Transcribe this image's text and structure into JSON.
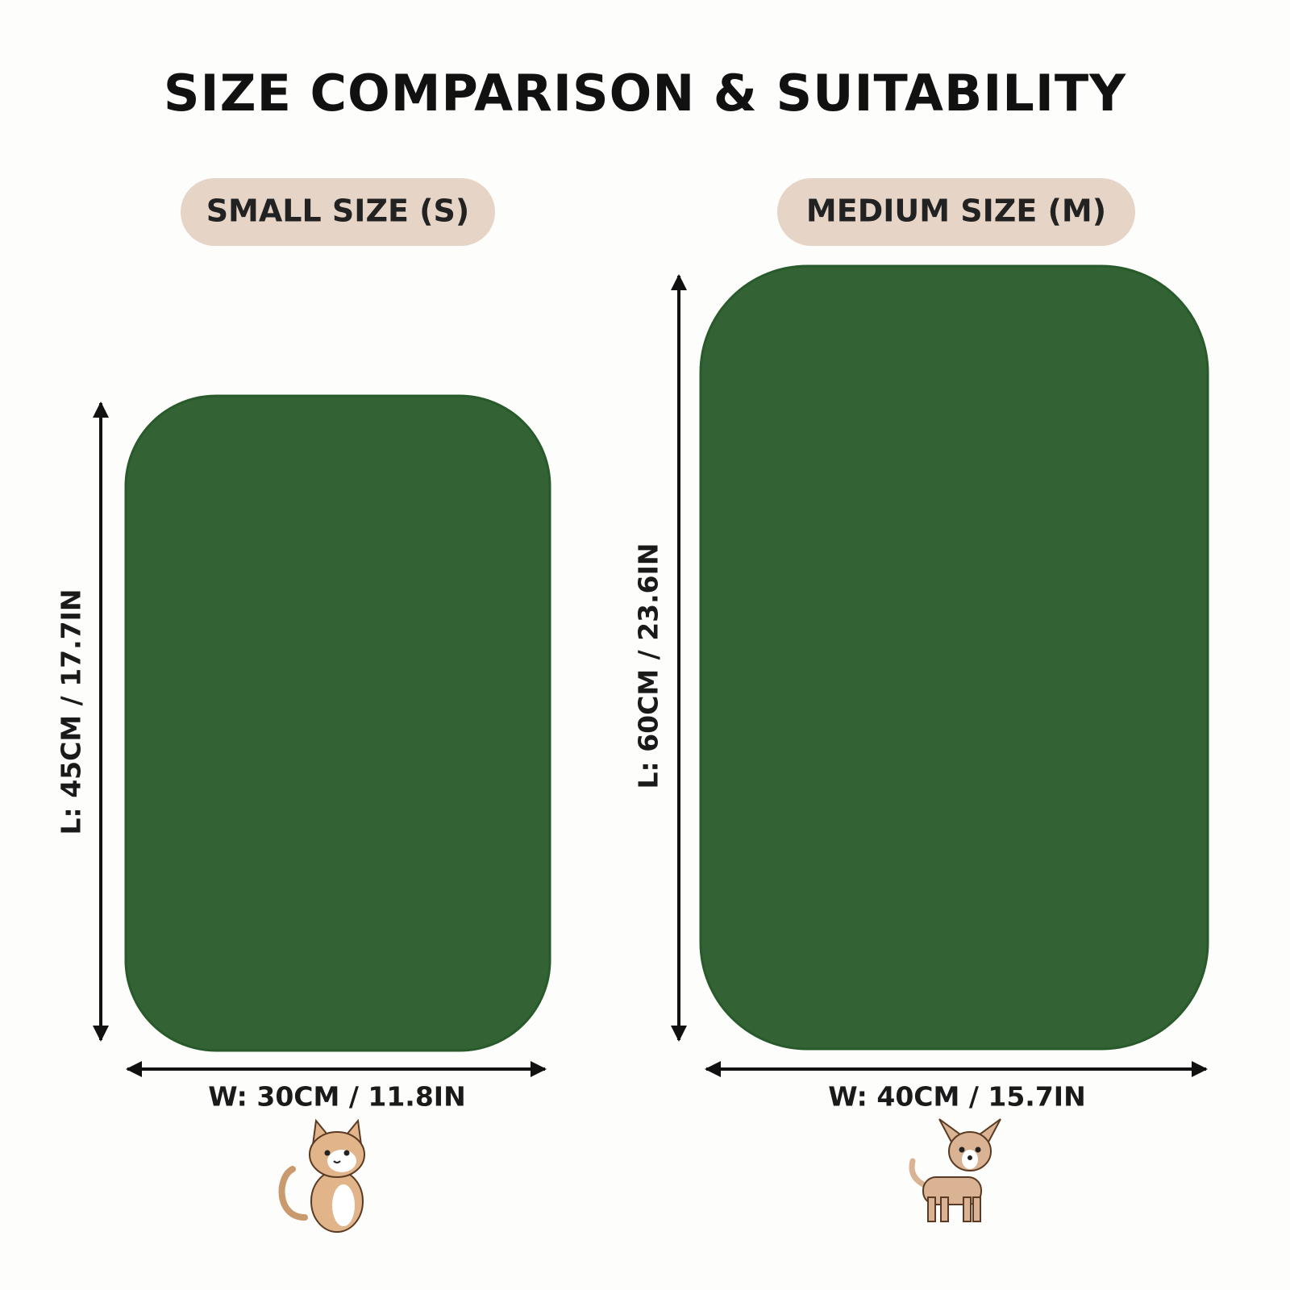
{
  "header": {
    "title": "SIZE COMPARISON & SUITABILITY"
  },
  "sizes": [
    {
      "label": "SMALL SIZE (S)",
      "length": "L: 45CM / 17.7IN",
      "width": "W: 30CM / 11.8IN"
    },
    {
      "label": "MEDIUM SIZE (M)",
      "length": "L: 60CM / 23.6IN",
      "width": "W: 40CM / 15.7IN"
    }
  ]
}
